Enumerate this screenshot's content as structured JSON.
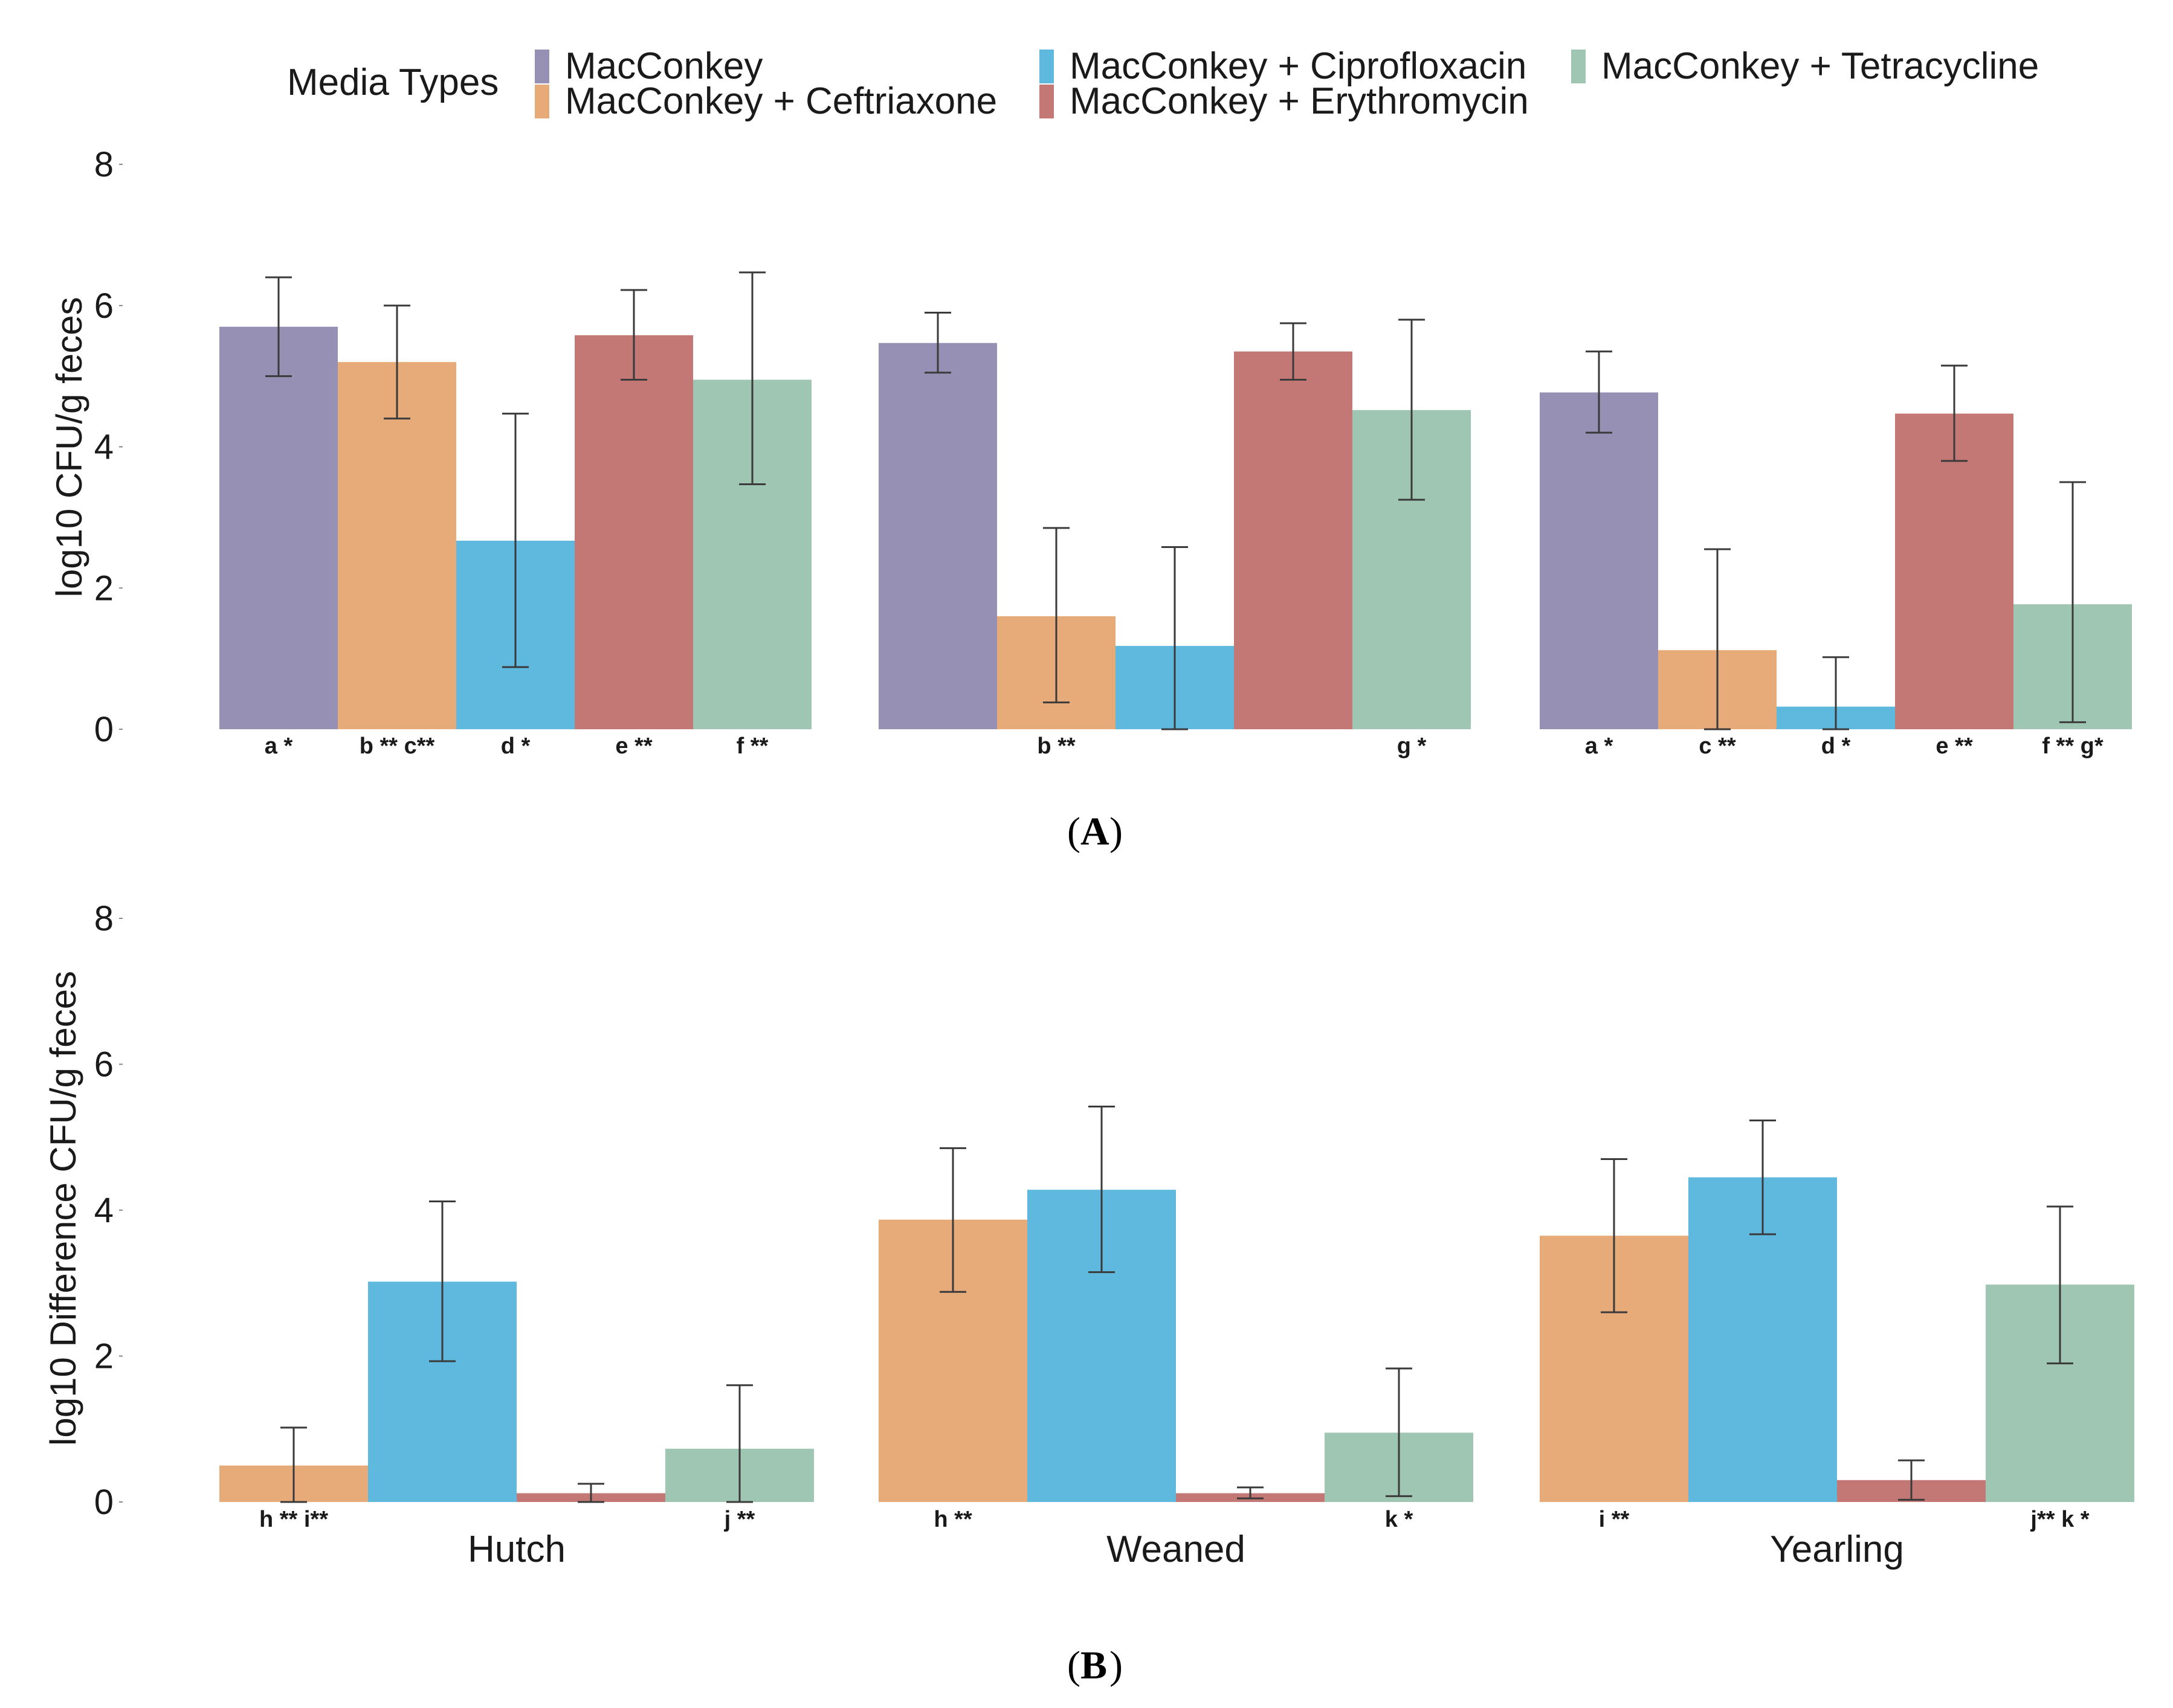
{
  "legend": {
    "title": "Media Types",
    "entries": [
      {
        "key": "mac",
        "label": "MacConkey",
        "color": "#9590b4"
      },
      {
        "key": "ceft",
        "label": "MacConkey + Ceftriaxone",
        "color": "#e7ab79"
      },
      {
        "key": "cipro",
        "label": "MacConkey + Ciprofloxacin",
        "color": "#5fb9df"
      },
      {
        "key": "ery",
        "label": "MacConkey + Erythromycin",
        "color": "#c47875"
      },
      {
        "key": "tetra",
        "label": "MacConkey + Tetracycline",
        "color": "#9fc6b2"
      }
    ]
  },
  "chart_data": [
    {
      "type": "bar",
      "panel": "A",
      "ylabel": "log10 CFU/g feces",
      "ylim": [
        0,
        8
      ],
      "yticks": [
        0,
        2,
        4,
        6,
        8
      ],
      "categories": [
        "Hutch",
        "Weaned",
        "Yearling"
      ],
      "category_labels_shown": false,
      "series": [
        {
          "name": "MacConkey",
          "color": "#9590b4",
          "values": [
            5.7,
            5.47,
            4.77
          ],
          "err_low": [
            5.0,
            5.05,
            4.2
          ],
          "err_high": [
            6.4,
            5.9,
            5.35
          ],
          "sig": [
            "a *",
            "",
            "a *"
          ]
        },
        {
          "name": "MacConkey + Ceftriaxone",
          "color": "#e7ab79",
          "values": [
            5.2,
            1.6,
            1.12
          ],
          "err_low": [
            4.4,
            0.38,
            0.0
          ],
          "err_high": [
            6.0,
            2.85,
            2.55
          ],
          "sig": [
            "b ** c**",
            "b **",
            "c **"
          ]
        },
        {
          "name": "MacConkey + Ciprofloxacin",
          "color": "#5fb9df",
          "values": [
            2.67,
            1.18,
            0.32
          ],
          "err_low": [
            0.88,
            0.0,
            0.0
          ],
          "err_high": [
            4.47,
            2.58,
            1.02
          ],
          "sig": [
            "d *",
            "",
            "d *"
          ]
        },
        {
          "name": "MacConkey + Erythromycin",
          "color": "#c47875",
          "values": [
            5.58,
            5.35,
            4.47
          ],
          "err_low": [
            4.95,
            4.95,
            3.8
          ],
          "err_high": [
            6.22,
            5.75,
            5.15
          ],
          "sig": [
            "e **",
            "",
            "e **"
          ]
        },
        {
          "name": "MacConkey + Tetracycline",
          "color": "#9fc6b2",
          "values": [
            4.95,
            4.52,
            1.77
          ],
          "err_low": [
            3.47,
            3.25,
            0.1
          ],
          "err_high": [
            6.47,
            5.8,
            3.5
          ],
          "sig": [
            "f **",
            "g *",
            "f ** g*"
          ]
        }
      ]
    },
    {
      "type": "bar",
      "panel": "B",
      "ylabel": "log10 Difference CFU/g feces",
      "ylim": [
        0,
        8
      ],
      "yticks": [
        0,
        2,
        4,
        6,
        8
      ],
      "categories": [
        "Hutch",
        "Weaned",
        "Yearling"
      ],
      "category_labels_shown": true,
      "series": [
        {
          "name": "MacConkey + Ceftriaxone",
          "color": "#e7ab79",
          "values": [
            0.5,
            3.87,
            3.65
          ],
          "err_low": [
            0.0,
            2.88,
            2.6
          ],
          "err_high": [
            1.02,
            4.85,
            4.7
          ],
          "sig": [
            "h ** i**",
            "h **",
            "i **"
          ]
        },
        {
          "name": "MacConkey + Ciprofloxacin",
          "color": "#5fb9df",
          "values": [
            3.02,
            4.28,
            4.45
          ],
          "err_low": [
            1.93,
            3.15,
            3.67
          ],
          "err_high": [
            4.12,
            5.42,
            5.23
          ],
          "sig": [
            "",
            "",
            ""
          ]
        },
        {
          "name": "MacConkey + Erythromycin",
          "color": "#c47875",
          "values": [
            0.12,
            0.12,
            0.3
          ],
          "err_low": [
            0.0,
            0.05,
            0.03
          ],
          "err_high": [
            0.25,
            0.2,
            0.57
          ],
          "sig": [
            "",
            "",
            ""
          ]
        },
        {
          "name": "MacConkey + Tetracycline",
          "color": "#9fc6b2",
          "values": [
            0.73,
            0.95,
            2.98
          ],
          "err_low": [
            0.0,
            0.08,
            1.9
          ],
          "err_high": [
            1.6,
            1.83,
            4.05
          ],
          "sig": [
            "j **",
            "k *",
            "j** k *"
          ]
        }
      ]
    }
  ],
  "panel_labels": {
    "a": "A",
    "b": "B"
  }
}
